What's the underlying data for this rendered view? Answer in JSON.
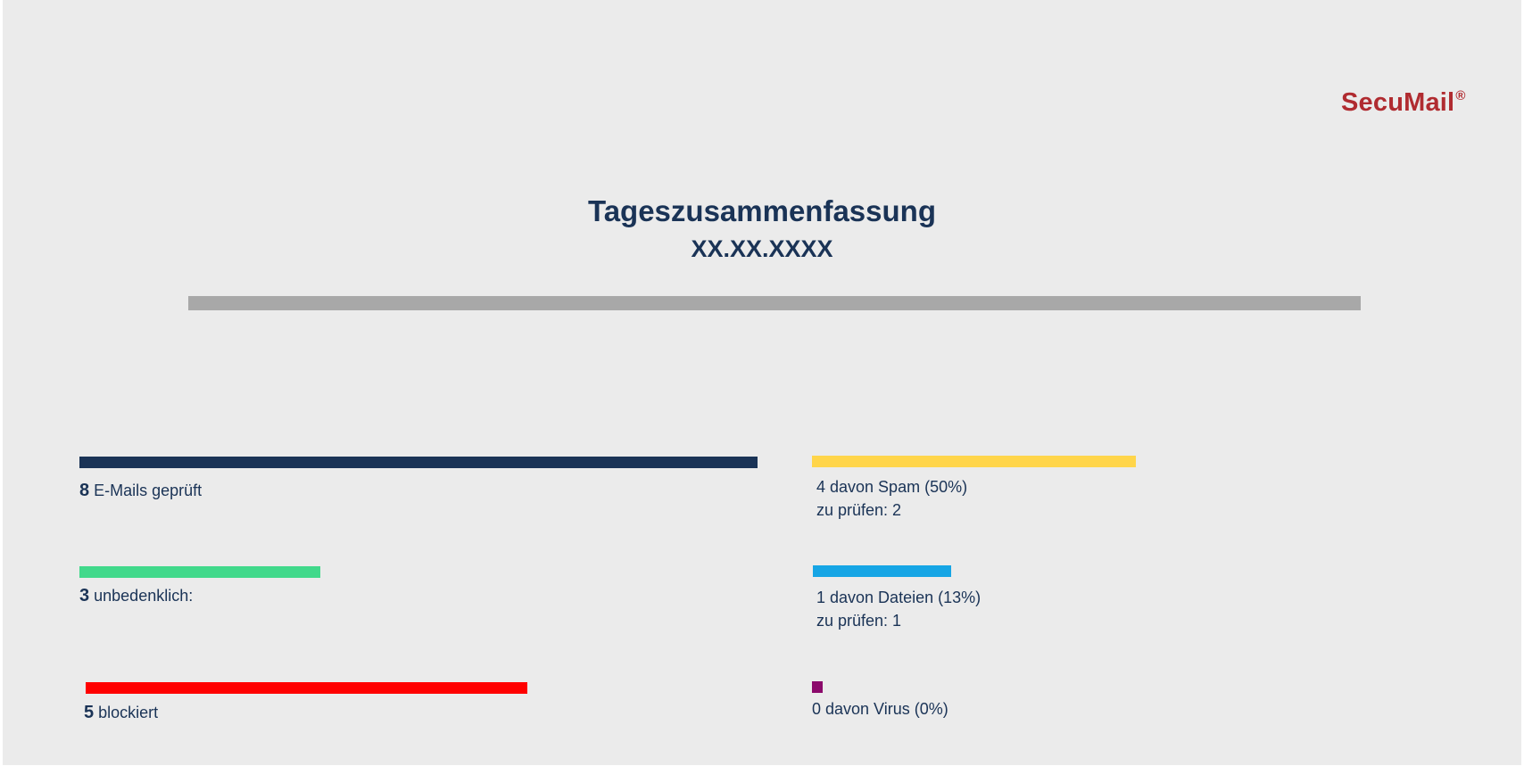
{
  "brand": {
    "logo_text": "SecuMail",
    "logo_mark": "®",
    "logo_color": "#b02b30"
  },
  "header": {
    "title": "Tageszusammenfassung",
    "date": "XX.XX.XXXX"
  },
  "summary": {
    "checked": {
      "count": "8",
      "label": "E-Mails geprüft",
      "color": "#1a3356"
    },
    "harmless": {
      "count": "3",
      "label": "unbedenklich:",
      "color": "#41d98b"
    },
    "blocked": {
      "count": "5",
      "label": "blockiert",
      "color": "#ff0000"
    },
    "spam": {
      "line1": "4 davon Spam (50%)",
      "line2": "zu prüfen: 2",
      "color": "#ffd54a"
    },
    "files": {
      "line1": "1 davon Dateien (13%)",
      "line2": "zu prüfen: 1",
      "color": "#16a5e5"
    },
    "virus": {
      "line1": "0 davon Virus (0%)",
      "color": "#8b0a6b"
    }
  }
}
